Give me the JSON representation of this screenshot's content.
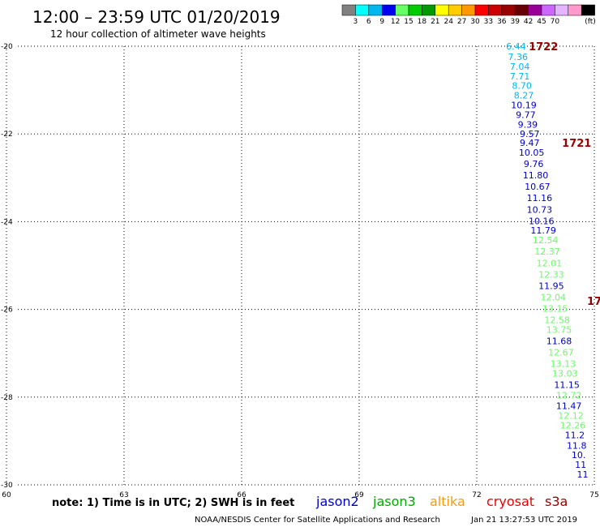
{
  "header": {
    "title": "12:00 – 23:59 UTC 01/20/2019",
    "subtitle": "12 hour collection of altimeter wave heights"
  },
  "colorbar": {
    "unit": "(ft)",
    "colors": [
      "#808080",
      "#00ffff",
      "#00b7f0",
      "#0000ee",
      "#66ff66",
      "#00cc00",
      "#009900",
      "#ffff00",
      "#ffcc00",
      "#ff9900",
      "#ff0000",
      "#cc0000",
      "#990000",
      "#660000",
      "#990099",
      "#cc66ff",
      "#e6b3ff",
      "#ff99cc",
      "#000000"
    ],
    "labels": [
      "3",
      "6",
      "9",
      "12",
      "15",
      "18",
      "21",
      "24",
      "27",
      "30",
      "33",
      "36",
      "39",
      "42",
      "45",
      "70"
    ]
  },
  "chart_data": {
    "type": "scatter",
    "xlim": [
      60,
      75
    ],
    "ylim": [
      -30,
      -20
    ],
    "x_ticks": [
      "60",
      "63",
      "66",
      "69",
      "72",
      "75"
    ],
    "y_ticks": [
      "-20",
      "-22",
      "-24",
      "-26",
      "-28",
      "-30"
    ],
    "grid": true,
    "series": [
      {
        "name": "jason2",
        "color": "#0000cc"
      },
      {
        "name": "jason3",
        "color": "#00aa00"
      },
      {
        "name": "altika",
        "color": "#ff9900"
      },
      {
        "name": "cryosat",
        "color": "#ee0000"
      },
      {
        "name": "s3a",
        "color": "#990000"
      }
    ],
    "time_labels": [
      {
        "text": "1722",
        "lon": 73.7,
        "lat": -20.0,
        "color": "#990000"
      },
      {
        "text": "1721",
        "lon": 74.55,
        "lat": -22.2,
        "color": "#990000"
      },
      {
        "text": "17",
        "lon": 75.0,
        "lat": -25.8,
        "color": "#990000"
      }
    ],
    "points": [
      {
        "lon": 73.0,
        "lat": -20.0,
        "value": "6.44",
        "color": "#00b7f0"
      },
      {
        "lon": 73.05,
        "lat": -20.24,
        "value": "7.36",
        "color": "#00b7f0"
      },
      {
        "lon": 73.1,
        "lat": -20.46,
        "value": "7.04",
        "color": "#00b7f0"
      },
      {
        "lon": 73.1,
        "lat": -20.68,
        "value": "7.71",
        "color": "#00b7f0"
      },
      {
        "lon": 73.15,
        "lat": -20.9,
        "value": "8.70",
        "color": "#00b7f0"
      },
      {
        "lon": 73.2,
        "lat": -21.12,
        "value": "8.27",
        "color": "#00b7f0"
      },
      {
        "lon": 73.2,
        "lat": -21.34,
        "value": "10.19",
        "color": "#0000cc"
      },
      {
        "lon": 73.25,
        "lat": -21.56,
        "value": "9.77",
        "color": "#0000cc"
      },
      {
        "lon": 73.3,
        "lat": -21.78,
        "value": "9.39",
        "color": "#0000cc"
      },
      {
        "lon": 73.35,
        "lat": -22.0,
        "value": "9.57",
        "color": "#0000cc"
      },
      {
        "lon": 73.35,
        "lat": -22.2,
        "value": "9.47",
        "color": "#0000cc"
      },
      {
        "lon": 73.4,
        "lat": -22.42,
        "value": "10.05",
        "color": "#0000cc"
      },
      {
        "lon": 73.45,
        "lat": -22.68,
        "value": "9.76",
        "color": "#0000cc"
      },
      {
        "lon": 73.5,
        "lat": -22.94,
        "value": "11.80",
        "color": "#0000cc"
      },
      {
        "lon": 73.55,
        "lat": -23.2,
        "value": "10.67",
        "color": "#0000cc"
      },
      {
        "lon": 73.6,
        "lat": -23.46,
        "value": "11.16",
        "color": "#0000cc"
      },
      {
        "lon": 73.6,
        "lat": -23.72,
        "value": "10.73",
        "color": "#0000cc"
      },
      {
        "lon": 73.65,
        "lat": -23.98,
        "value": "10.16",
        "color": "#0000cc"
      },
      {
        "lon": 73.7,
        "lat": -24.2,
        "value": "11.79",
        "color": "#0000cc"
      },
      {
        "lon": 73.75,
        "lat": -24.42,
        "value": "12.54",
        "color": "#66ff66"
      },
      {
        "lon": 73.8,
        "lat": -24.68,
        "value": "12.37",
        "color": "#66ff66"
      },
      {
        "lon": 73.85,
        "lat": -24.94,
        "value": "12.01",
        "color": "#66ff66"
      },
      {
        "lon": 73.9,
        "lat": -25.2,
        "value": "12.33",
        "color": "#66ff66"
      },
      {
        "lon": 73.9,
        "lat": -25.46,
        "value": "11.95",
        "color": "#0000cc"
      },
      {
        "lon": 73.95,
        "lat": -25.72,
        "value": "12.04",
        "color": "#66ff66"
      },
      {
        "lon": 74.0,
        "lat": -25.98,
        "value": "13.15",
        "color": "#66ff66"
      },
      {
        "lon": 74.05,
        "lat": -26.24,
        "value": "12.58",
        "color": "#66ff66"
      },
      {
        "lon": 74.1,
        "lat": -26.46,
        "value": "13.75",
        "color": "#66ff66"
      },
      {
        "lon": 74.1,
        "lat": -26.72,
        "value": "11.68",
        "color": "#0000cc"
      },
      {
        "lon": 74.15,
        "lat": -26.98,
        "value": "12.67",
        "color": "#66ff66"
      },
      {
        "lon": 74.2,
        "lat": -27.24,
        "value": "13.13",
        "color": "#66ff66"
      },
      {
        "lon": 74.25,
        "lat": -27.46,
        "value": "13.03",
        "color": "#66ff66"
      },
      {
        "lon": 74.3,
        "lat": -27.72,
        "value": "11.15",
        "color": "#0000cc"
      },
      {
        "lon": 74.35,
        "lat": -27.96,
        "value": "12.72",
        "color": "#66ff66"
      },
      {
        "lon": 74.35,
        "lat": -28.2,
        "value": "11.47",
        "color": "#0000cc"
      },
      {
        "lon": 74.4,
        "lat": -28.42,
        "value": "12.12",
        "color": "#66ff66"
      },
      {
        "lon": 74.45,
        "lat": -28.64,
        "value": "12.26",
        "color": "#66ff66"
      },
      {
        "lon": 74.5,
        "lat": -28.86,
        "value": "11.2",
        "color": "#0000cc"
      },
      {
        "lon": 74.55,
        "lat": -29.1,
        "value": "11.8",
        "color": "#0000cc"
      },
      {
        "lon": 74.6,
        "lat": -29.32,
        "value": "10.",
        "color": "#0000cc"
      },
      {
        "lon": 74.65,
        "lat": -29.54,
        "value": "11",
        "color": "#0000cc"
      },
      {
        "lon": 74.7,
        "lat": -29.76,
        "value": "11",
        "color": "#0000cc"
      }
    ]
  },
  "footer": {
    "note": "note: 1) Time is in UTC; 2) SWH is in feet",
    "credit": "NOAA/NESDIS Center for Satellite Applications and Research",
    "timestamp": "Jan 21 13:27:53 UTC 2019"
  }
}
